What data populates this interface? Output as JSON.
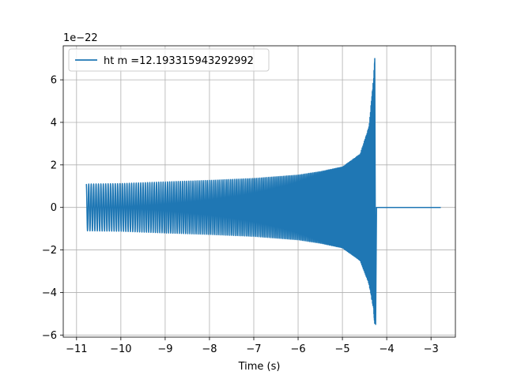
{
  "chart_data": {
    "type": "line",
    "title": "",
    "xlabel": "Time (s)",
    "ylabel": "",
    "y_offset_label": "1e−22",
    "y_scale": 1e-22,
    "xlim": [
      -11.3,
      -2.45
    ],
    "ylim": [
      -6.1,
      7.6
    ],
    "x_ticks": [
      -11,
      -10,
      -9,
      -8,
      -7,
      -6,
      -5,
      -4,
      -3
    ],
    "x_tick_labels": [
      "−11",
      "−10",
      "−9",
      "−8",
      "−7",
      "−6",
      "−5",
      "−4",
      "−3"
    ],
    "y_ticks": [
      -6,
      -4,
      -2,
      0,
      2,
      4,
      6
    ],
    "y_tick_labels": [
      "−6",
      "−4",
      "−2",
      "0",
      "2",
      "4",
      "6"
    ],
    "grid": true,
    "legend_position": "top-left",
    "series": [
      {
        "name": "ht m =12.193315943292992",
        "color": "#1f77b4",
        "description": "inspiral chirp waveform",
        "t_start": -10.78,
        "t_merger": -4.27,
        "t_end": -2.78,
        "envelope_points": [
          [
            -10.78,
            1.1
          ],
          [
            -10.0,
            1.12
          ],
          [
            -9.0,
            1.2
          ],
          [
            -8.0,
            1.27
          ],
          [
            -7.0,
            1.36
          ],
          [
            -6.0,
            1.52
          ],
          [
            -5.5,
            1.68
          ],
          [
            -5.0,
            1.9
          ],
          [
            -4.6,
            2.5
          ],
          [
            -4.4,
            3.8
          ],
          [
            -4.3,
            6.0
          ],
          [
            -4.27,
            7.0
          ]
        ],
        "lower_envelope_points": [
          [
            -10.78,
            -1.1
          ],
          [
            -10.0,
            -1.12
          ],
          [
            -9.0,
            -1.2
          ],
          [
            -8.0,
            -1.27
          ],
          [
            -7.0,
            -1.36
          ],
          [
            -6.0,
            -1.52
          ],
          [
            -5.5,
            -1.68
          ],
          [
            -5.0,
            -1.9
          ],
          [
            -4.6,
            -2.5
          ],
          [
            -4.4,
            -3.6
          ],
          [
            -4.3,
            -4.8
          ],
          [
            -4.27,
            -5.5
          ]
        ],
        "post_merger_value": 0
      }
    ]
  }
}
